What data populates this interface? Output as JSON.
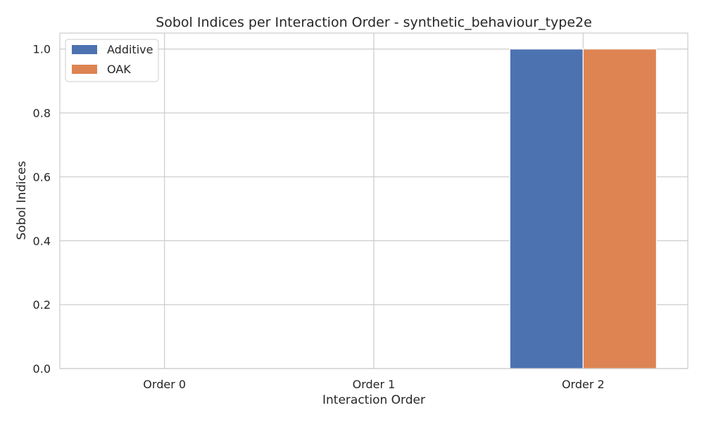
{
  "chart_data": {
    "type": "bar",
    "title": "Sobol Indices per Interaction Order - synthetic_behaviour_type2e",
    "xlabel": "Interaction Order",
    "ylabel": "Sobol Indices",
    "categories": [
      "Order 0",
      "Order 1",
      "Order 2"
    ],
    "series": [
      {
        "name": "Additive",
        "values": [
          0.0,
          0.0,
          1.0
        ],
        "color": "#4c72b0"
      },
      {
        "name": "OAK",
        "values": [
          0.0,
          0.0,
          1.0
        ],
        "color": "#dd8452"
      }
    ],
    "ylim": [
      0,
      1.05
    ],
    "yticks": [
      "0.0",
      "0.2",
      "0.4",
      "0.6",
      "0.8",
      "1.0"
    ],
    "grid": true,
    "legend_position": "top-left",
    "colors": {
      "grid": "#cccccc",
      "axes_edge": "#cccccc",
      "text": "#262626",
      "background": "#ffffff"
    }
  }
}
